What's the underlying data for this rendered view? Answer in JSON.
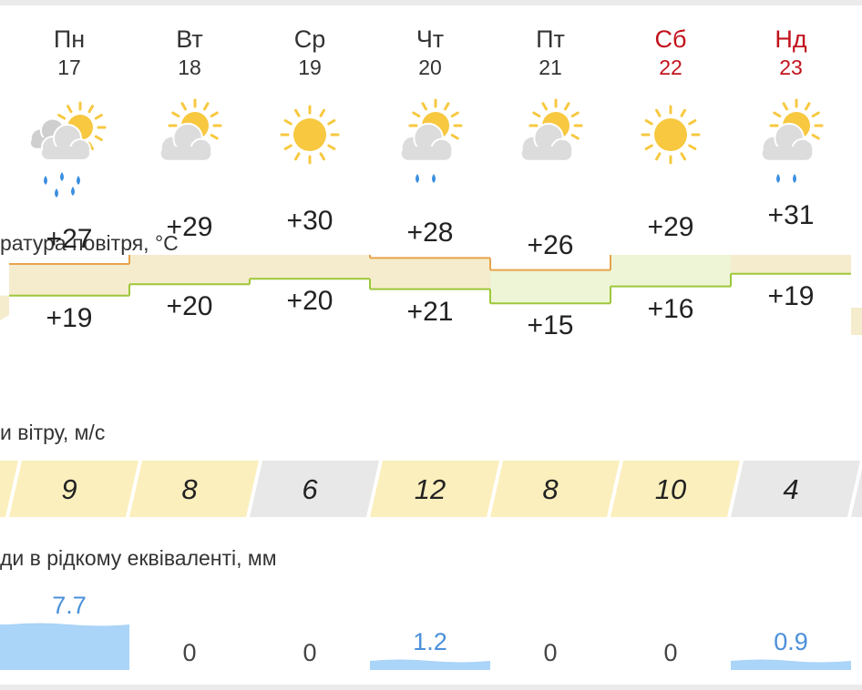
{
  "days": [
    {
      "dow": "Пн",
      "date": "17",
      "weekend": false,
      "icon": "partly-cloudy-rain-icon",
      "temp_max": "+27",
      "temp_min": "+19",
      "max": 27,
      "min": 19,
      "wind": "9",
      "wind_level": "yellow",
      "precip": "7.7",
      "precip_mm": 7.7
    },
    {
      "dow": "Вт",
      "date": "18",
      "weekend": false,
      "icon": "partly-cloudy-icon",
      "temp_max": "+29",
      "temp_min": "+20",
      "max": 29,
      "min": 20,
      "wind": "8",
      "wind_level": "yellow",
      "precip": "0",
      "precip_mm": 0
    },
    {
      "dow": "Ср",
      "date": "19",
      "weekend": false,
      "icon": "sun-icon",
      "temp_max": "+30",
      "temp_min": "+20",
      "max": 30,
      "min": 20,
      "wind": "6",
      "wind_level": "gray",
      "precip": "0",
      "precip_mm": 0
    },
    {
      "dow": "Чт",
      "date": "20",
      "weekend": false,
      "icon": "partly-cloudy-rain-icon",
      "temp_max": "+28",
      "temp_min": "+21",
      "max": 28,
      "min": 21,
      "wind": "12",
      "wind_level": "yellow",
      "precip": "1.2",
      "precip_mm": 1.2
    },
    {
      "dow": "Пт",
      "date": "21",
      "weekend": false,
      "icon": "partly-cloudy-icon",
      "temp_max": "+26",
      "temp_min": "+15",
      "max": 26,
      "min": 15,
      "wind": "8",
      "wind_level": "yellow",
      "precip": "0",
      "precip_mm": 0
    },
    {
      "dow": "Сб",
      "date": "22",
      "weekend": true,
      "icon": "sun-icon",
      "temp_max": "+29",
      "temp_min": "+16",
      "max": 29,
      "min": 16,
      "wind": "10",
      "wind_level": "yellow",
      "precip": "0",
      "precip_mm": 0
    },
    {
      "dow": "Нд",
      "date": "23",
      "weekend": true,
      "icon": "partly-cloudy-rain-icon",
      "temp_max": "+31",
      "temp_min": "+19",
      "max": 31,
      "min": 19,
      "wind": "4",
      "wind_level": "gray",
      "precip": "0.9",
      "precip_mm": 0.9
    }
  ],
  "labels": {
    "temperature": "ратура повітря, °C",
    "wind": "и вітру, м/с",
    "precip": "ди в рідкому еквіваленті, мм"
  },
  "colors": {
    "weekend_text": "#c2121b",
    "warm_band": "#f5eccd",
    "warm_line": "#e7a44a",
    "cool_band": "#eef5d6",
    "cool_line": "#9ec73a",
    "wind_yellow": "#fbefbd",
    "wind_gray": "#e8e8e8",
    "precip_fill": "#aad4f8",
    "precip_text": "#4a90d9"
  }
}
